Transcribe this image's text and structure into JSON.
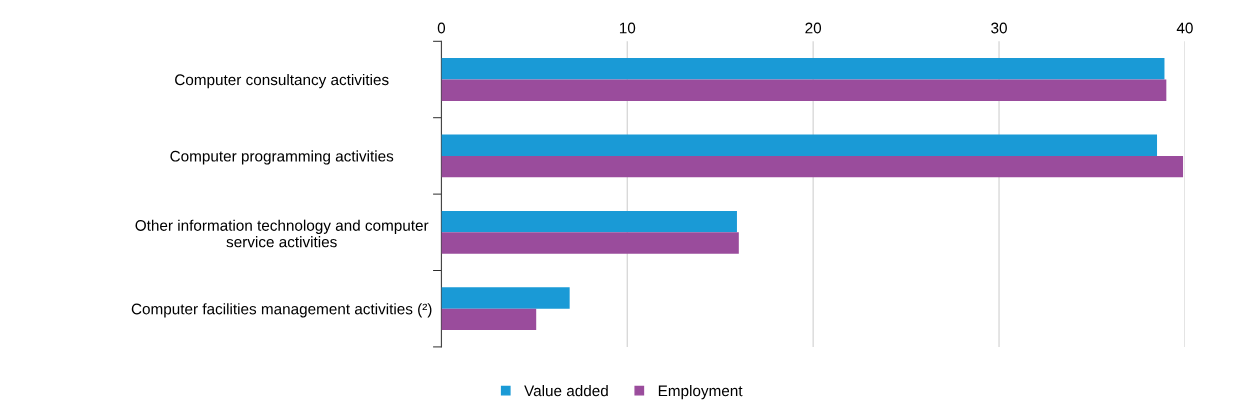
{
  "chart_data": {
    "type": "bar",
    "orientation": "horizontal",
    "categories": [
      "Computer consultancy activities",
      "Computer programming activities",
      "Other information technology and computer\nservice activities",
      "Computer facilities management activities (²)"
    ],
    "series": [
      {
        "name": "Value added",
        "color": "#1a9ad6",
        "values": [
          38.9,
          38.5,
          15.9,
          6.9
        ]
      },
      {
        "name": "Employment",
        "color": "#9a4c9c",
        "values": [
          39.0,
          39.9,
          16.0,
          5.1
        ]
      }
    ],
    "xlim": [
      0,
      40
    ],
    "xticks": [
      0,
      10,
      20,
      30,
      40
    ],
    "grid": "x",
    "legend": "bottom"
  }
}
